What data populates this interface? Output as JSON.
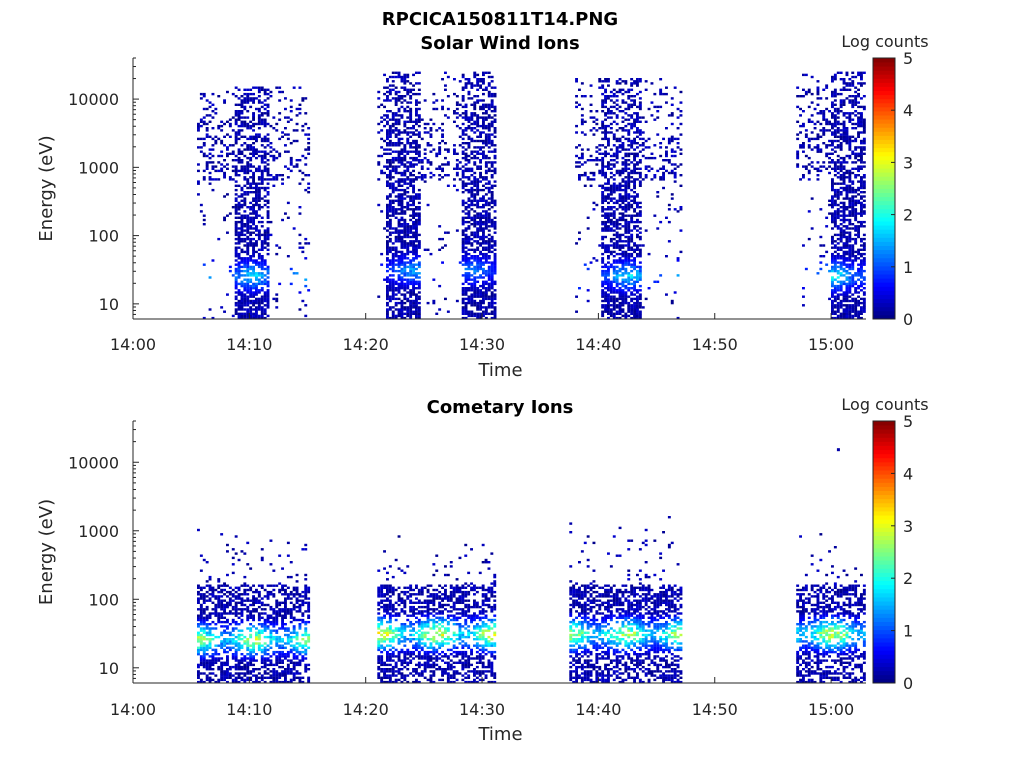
{
  "figure_title": "RPCICA150811T14.PNG",
  "chart_data": [
    {
      "type": "heatmap",
      "title": "Solar Wind Ions",
      "xlabel": "Time",
      "ylabel": "Energy (eV)",
      "xticks": [
        "14:00",
        "14:10",
        "14:20",
        "14:30",
        "14:40",
        "14:50",
        "15:00"
      ],
      "xlim": [
        "14:00",
        "15:03"
      ],
      "yscale": "log",
      "yticks": [
        "10",
        "100",
        "1000",
        "10000"
      ],
      "ylim": [
        6,
        40000
      ],
      "colorbar": {
        "label": "Log counts",
        "ticks": [
          "0",
          "1",
          "2",
          "3",
          "4",
          "5"
        ],
        "range": [
          0,
          5
        ],
        "colormap": "jet"
      },
      "background": "#ffffff",
      "grid": false,
      "activity": [
        {
          "start": "14:05.5",
          "end": "14:15",
          "core_start": "14:08.5",
          "core_end": "14:11.5",
          "emin": 6,
          "emax": 15000,
          "core_emin": 6,
          "peak_energy": 25,
          "peak_log_counts": 2.0
        },
        {
          "start": "14:21",
          "end": "14:27",
          "core_start": "14:21.5",
          "core_end": "14:24.5",
          "emin": 6,
          "emax": 25000,
          "core_emin": 6,
          "peak_energy": 30,
          "peak_log_counts": 1.7
        },
        {
          "start": "14:27.5",
          "end": "14:31",
          "core_start": "14:28",
          "core_end": "14:31",
          "emin": 6,
          "emax": 25000,
          "core_emin": 6,
          "peak_energy": 30,
          "peak_log_counts": 1.5
        },
        {
          "start": "14:38",
          "end": "14:47",
          "core_start": "14:40",
          "core_end": "14:43.5",
          "emin": 6,
          "emax": 20000,
          "core_emin": 6,
          "peak_energy": 25,
          "peak_log_counts": 2.0
        },
        {
          "start": "14:57",
          "end": "15:03",
          "core_start": "14:59.8",
          "core_end": "15:03",
          "emin": 6,
          "emax": 25000,
          "core_emin": 6,
          "peak_energy": 25,
          "peak_log_counts": 2.2
        }
      ]
    },
    {
      "type": "heatmap",
      "title": "Cometary Ions",
      "xlabel": "Time",
      "ylabel": "Energy (eV)",
      "xticks": [
        "14:00",
        "14:10",
        "14:20",
        "14:30",
        "14:40",
        "14:50",
        "15:00"
      ],
      "xlim": [
        "14:00",
        "15:03"
      ],
      "yscale": "log",
      "yticks": [
        "10",
        "100",
        "1000",
        "10000"
      ],
      "ylim": [
        6,
        40000
      ],
      "colorbar": {
        "label": "Log counts",
        "ticks": [
          "0",
          "1",
          "2",
          "3",
          "4",
          "5"
        ],
        "range": [
          0,
          5
        ],
        "colormap": "jet"
      },
      "background": "#ffffff",
      "grid": false,
      "activity": [
        {
          "start": "14:05.5",
          "end": "14:15",
          "emin": 6,
          "emax": 1300,
          "peak_energy": 25,
          "peak_log_counts": 3.3
        },
        {
          "start": "14:21",
          "end": "14:31",
          "emin": 6,
          "emax": 900,
          "peak_energy": 30,
          "peak_log_counts": 3.6
        },
        {
          "start": "14:37.5",
          "end": "14:47",
          "emin": 6,
          "emax": 1800,
          "peak_energy": 30,
          "peak_log_counts": 3.4
        },
        {
          "start": "14:57",
          "end": "15:03",
          "emin": 6,
          "emax": 900,
          "peak_energy": 30,
          "peak_log_counts": 3.5
        }
      ],
      "outliers": [
        {
          "time": "15:00.5",
          "energy": 15000,
          "log_counts": 0.2
        }
      ]
    }
  ]
}
